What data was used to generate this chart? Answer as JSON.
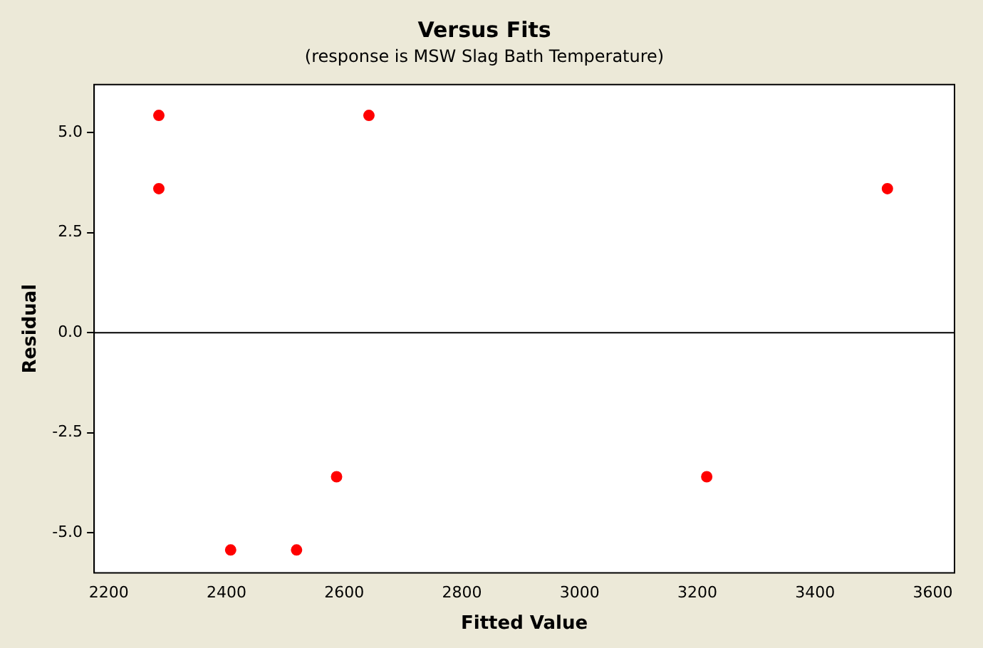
{
  "chart_data": {
    "type": "scatter",
    "title": "Versus Fits",
    "subtitle": "(response is MSW Slag Bath Temperature)",
    "xlabel": "Fitted Value",
    "ylabel": "Residual",
    "x": [
      2285,
      2285,
      2642,
      2407,
      2519,
      2587,
      3216,
      3523
    ],
    "series": [
      {
        "color": "#ff0000",
        "values": [
          5.43,
          3.6,
          5.43,
          -5.43,
          -5.43,
          -3.6,
          -3.6,
          3.6
        ]
      }
    ],
    "xlim": [
      2175,
      3637
    ],
    "xticks": [
      2200,
      2400,
      2600,
      2800,
      3000,
      3200,
      3400,
      3600
    ],
    "ylim": [
      -6.0,
      6.2
    ],
    "yticks": [
      {
        "value": -5,
        "label": "-5.0"
      },
      {
        "value": -2.5,
        "label": "-2.5"
      },
      {
        "value": 0,
        "label": "0.0"
      },
      {
        "value": 2.5,
        "label": "2.5"
      },
      {
        "value": 5,
        "label": "5.0"
      }
    ],
    "ref_lines": [
      {
        "axis": "y",
        "value": 0,
        "color": "#000000"
      }
    ],
    "grid": false,
    "legend": false,
    "marker": "circle"
  }
}
